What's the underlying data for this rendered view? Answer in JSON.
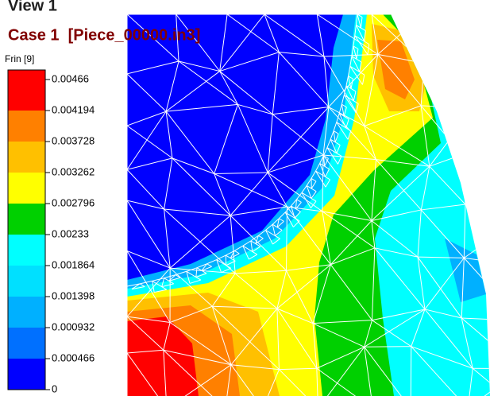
{
  "header": {
    "view": "View 1",
    "case": "Case 1  [Piece_00000.in3]",
    "variable": "Frin [9]"
  },
  "legend": {
    "labels": [
      "0.00466",
      "0.004194",
      "0.003728",
      "0.003262",
      "0.002796",
      "0.00233",
      "0.001864",
      "0.001398",
      "0.000932",
      "0.000466",
      "0"
    ]
  }
}
